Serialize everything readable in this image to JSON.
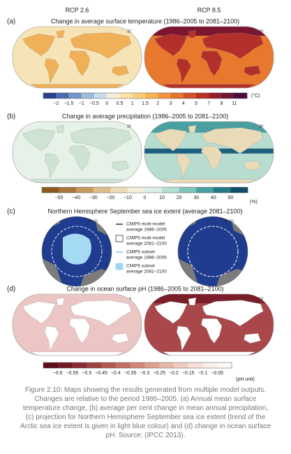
{
  "panels": [
    {
      "label": "(a)",
      "title": "Change in average surface temperature (1986–2005 to 2081–2100)",
      "scenarios": [
        "RCP 2.6",
        "RCP 8.5"
      ],
      "map_numbers": [
        "32",
        "39"
      ],
      "colorbar": {
        "labels": [
          "−2",
          "−1.5",
          "−1",
          "−0.5",
          "0",
          "0.5",
          "1",
          "1.5",
          "2",
          "3",
          "4",
          "5",
          "7",
          "9",
          "11"
        ],
        "colors": [
          "#2c3e8f",
          "#4a6db0",
          "#7297c8",
          "#9dbcdc",
          "#c9dcec",
          "#f4efd8",
          "#fbe2a6",
          "#f9cd7d",
          "#f7b455",
          "#f0953c",
          "#e4742c",
          "#d4512a",
          "#b93325",
          "#951d2a",
          "#6e1538",
          "#4a0d3a"
        ],
        "unit": "(°C)"
      }
    },
    {
      "label": "(b)",
      "title": "Change in average precipitation (1986–2005 to 2081–2100)",
      "map_numbers": [
        "32",
        "39"
      ],
      "colorbar": {
        "labels": [
          "−50",
          "−40",
          "−30",
          "−20",
          "−10",
          "0",
          "10",
          "20",
          "30",
          "40",
          "50"
        ],
        "colors": [
          "#8a5a1f",
          "#a9753a",
          "#c79a5d",
          "#ddbd8b",
          "#eedcb7",
          "#f6efd9",
          "#dcefe6",
          "#b4dfd3",
          "#7ec3bb",
          "#4a9fa0",
          "#257a86",
          "#0f4f6b"
        ],
        "unit": "(%)"
      }
    },
    {
      "label": "(c)",
      "title": "Northern Hemisphere September sea ice extent (average 2081–2100)",
      "map_numbers": [
        "29 (3)",
        "37 (5)"
      ],
      "legend": [
        {
          "style": "line",
          "color": "#333333",
          "text": [
            "CMIP5 multi-model",
            "average 1986–2005"
          ]
        },
        {
          "style": "box",
          "color": "#333333",
          "text": [
            "CMIP5 multi-model",
            "average 2081–2100"
          ]
        },
        {
          "style": "line",
          "color": "#7fc8ee",
          "text": [
            "CMIP5 subset",
            "average 1986–2005"
          ]
        },
        {
          "style": "fill",
          "color": "#9fd6f2",
          "text": [
            "CMIP5 subset",
            "average 2081–2100"
          ]
        }
      ]
    },
    {
      "label": "(d)",
      "title": "Change in ocean surface pH (1986–2005 to 2081–2100)",
      "map_numbers": [
        "9",
        "10"
      ],
      "colorbar": {
        "labels": [
          "−0.6",
          "−0.55",
          "−0.5",
          "−0.45",
          "−0.4",
          "−0.35",
          "−0.3",
          "−0.25",
          "−0.2",
          "−0.15",
          "−0.1",
          "−0.05"
        ],
        "colors": [
          "#5a0f1c",
          "#721a26",
          "#8a2a32",
          "#a0403f",
          "#b3574f",
          "#c46f63",
          "#d28878",
          "#dea08f",
          "#e8b8a8",
          "#f0cdc1",
          "#f6e0d8",
          "#faeeea",
          "#fdf8f6"
        ],
        "unit": "(pH unit)"
      }
    }
  ],
  "caption": "Figure 2.10: Maps showing the results generated from multiple model outputs. Changes are relative to the period 1986–2005. (a) Annual mean surface temperature change, (b) average per cent change in mean annual precipitation, (c) projection for Northern Hemisphere September sea ice extent (trend of the Arctic sea ice extent is given in light blue colour) and (d) change in ocean surface pH. Source: (IPCC 2013)."
}
